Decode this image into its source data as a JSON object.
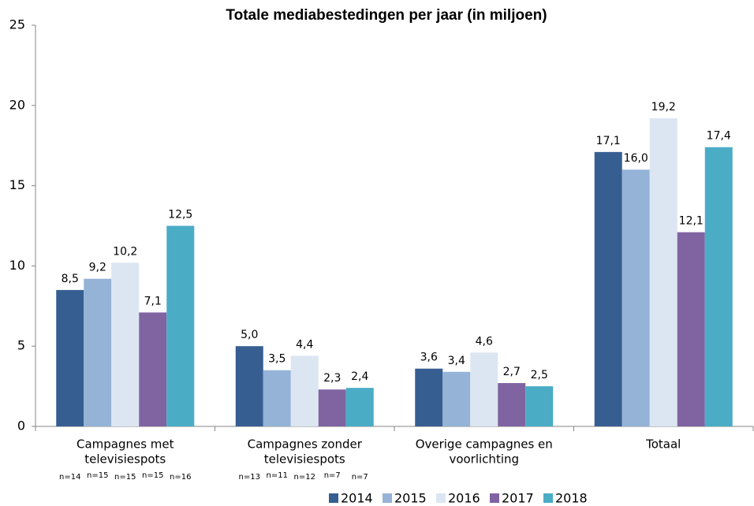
{
  "chart_data": {
    "type": "bar",
    "title": "Totale mediabestedingen per jaar (in miljoen)",
    "categories": [
      [
        "Campagnes met",
        "televisiespots"
      ],
      [
        "Campagnes zonder",
        "televisiespots"
      ],
      [
        "Overige campagnes en",
        "voorlichting"
      ],
      [
        "Totaal"
      ]
    ],
    "series": [
      {
        "name": "2014",
        "color": "#375e91",
        "values": [
          8.5,
          5.0,
          3.6,
          17.1
        ],
        "value_labels": [
          "8,5",
          "5,0",
          "3,6",
          "17,1"
        ]
      },
      {
        "name": "2015",
        "color": "#95b3d7",
        "values": [
          9.2,
          3.5,
          3.4,
          16.0
        ],
        "value_labels": [
          "9,2",
          "3,5",
          "3,4",
          "16,0"
        ]
      },
      {
        "name": "2016",
        "color": "#dce6f2",
        "values": [
          10.2,
          4.4,
          4.6,
          19.2
        ],
        "value_labels": [
          "10,2",
          "4,4",
          "4,6",
          "19,2"
        ]
      },
      {
        "name": "2017",
        "color": "#8064a2",
        "values": [
          7.1,
          2.3,
          2.7,
          12.1
        ],
        "value_labels": [
          "7,1",
          "2,3",
          "2,7",
          "12,1"
        ]
      },
      {
        "name": "2018",
        "color": "#4bacc6",
        "values": [
          12.5,
          2.4,
          2.5,
          17.4
        ],
        "value_labels": [
          "12,5",
          "2,4",
          "2,5",
          "17,4"
        ]
      }
    ],
    "sample_sizes": [
      [
        "n=14",
        "n=15",
        "n=15",
        "n=15",
        "n=16"
      ],
      [
        "n=13",
        "n=11",
        "n=12",
        "n=7",
        "n=7"
      ]
    ],
    "ylim": [
      0,
      25
    ],
    "yticks": [
      0,
      5,
      10,
      15,
      20,
      25
    ],
    "grid": false,
    "legend": "bottom"
  }
}
